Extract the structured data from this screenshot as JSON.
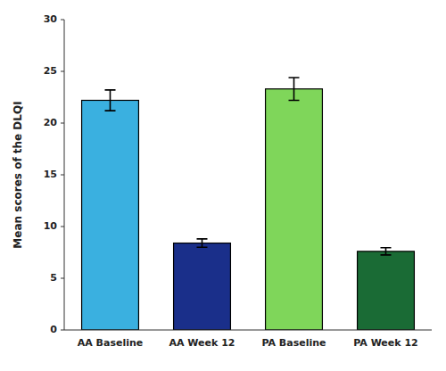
{
  "chart_data": {
    "type": "bar",
    "categories": [
      "AA Baseline",
      "AA Week 12",
      "PA Baseline",
      "PA Week 12"
    ],
    "values": [
      22.2,
      8.4,
      23.3,
      7.6
    ],
    "errors": [
      1.0,
      0.4,
      1.1,
      0.35
    ],
    "colors": [
      "#3ab0e0",
      "#1a2f8a",
      "#7fd65a",
      "#1a6b35"
    ],
    "ylabel": "Mean scores of the DLQI",
    "ylim": [
      0,
      30
    ],
    "yticks": [
      0,
      5,
      10,
      15,
      20,
      25,
      30
    ],
    "grid": false
  }
}
